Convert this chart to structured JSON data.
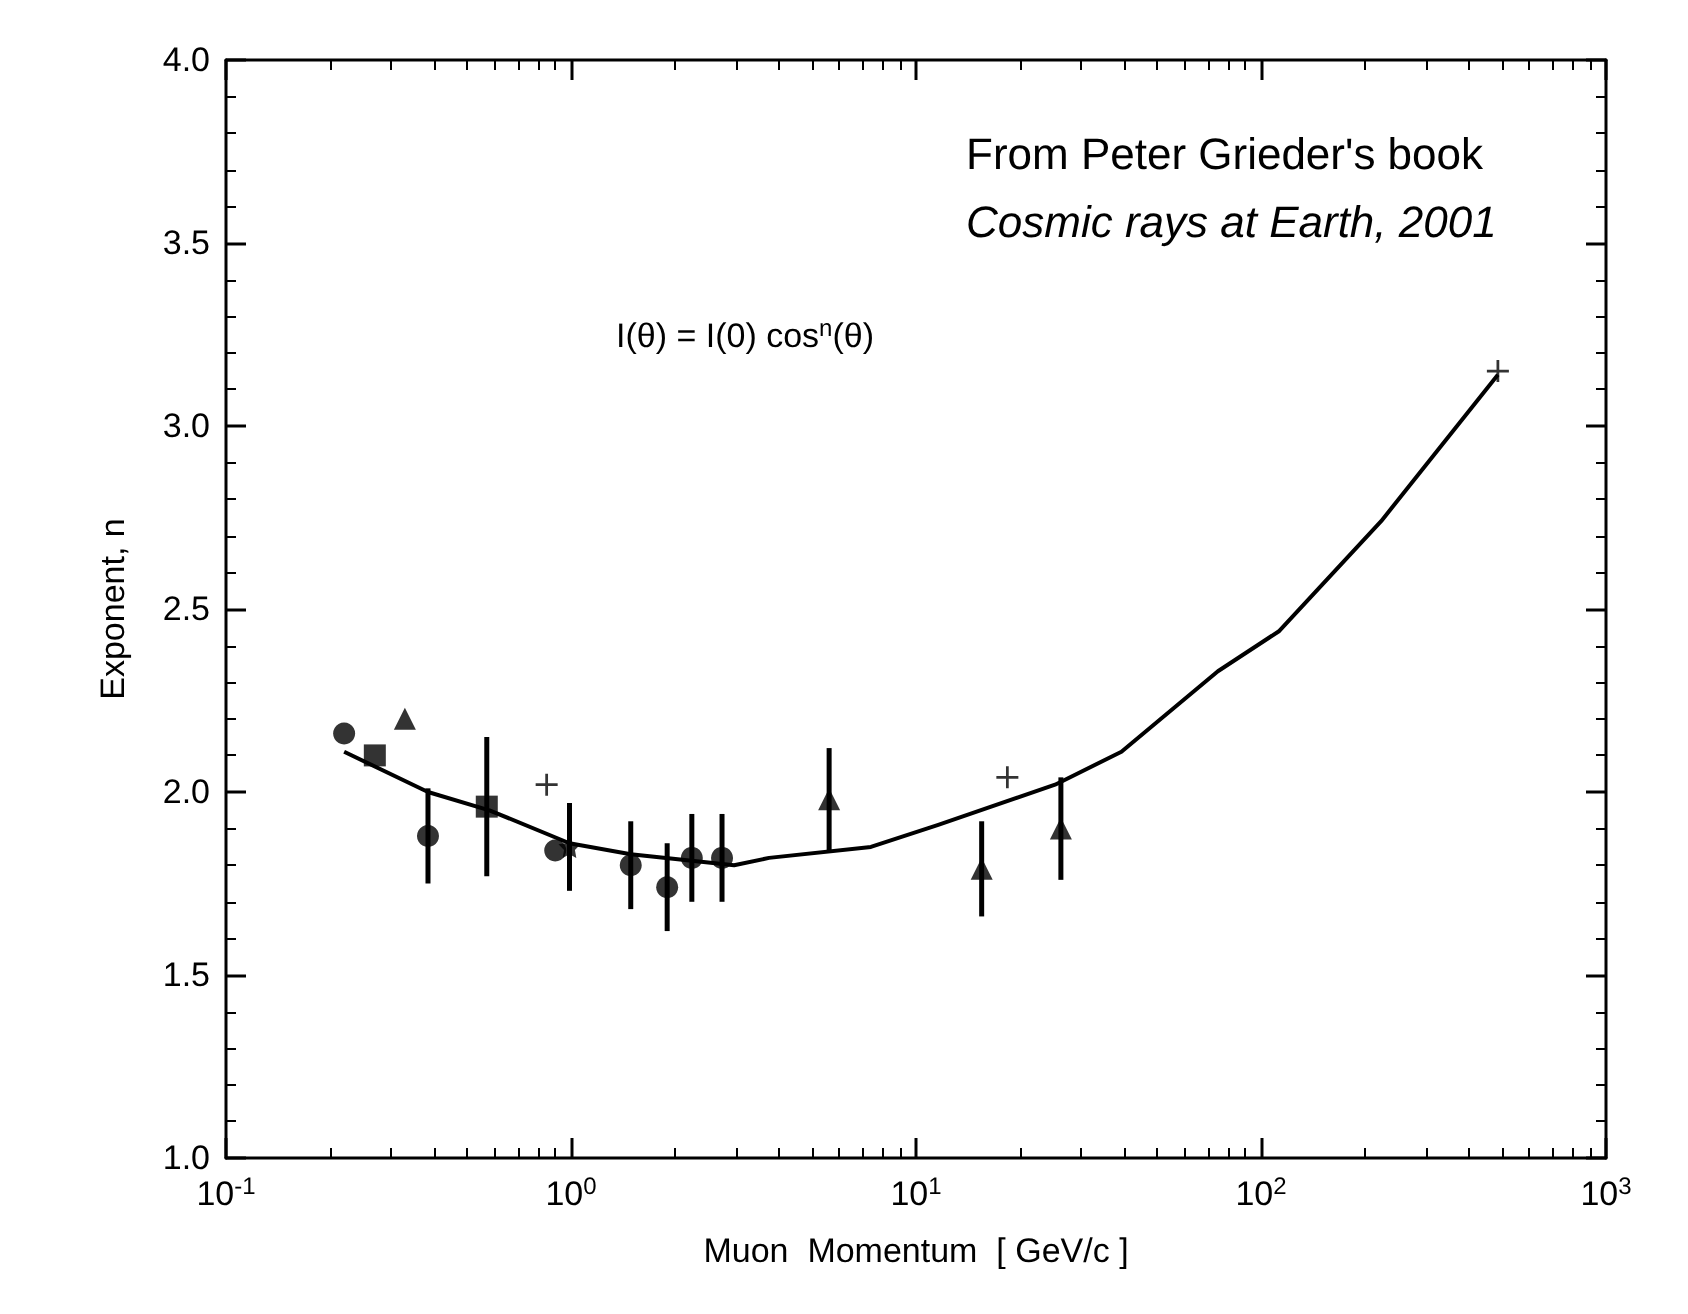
{
  "chart_data": {
    "type": "scatter",
    "xlabel": "Muon  Momentum  [ GeV/c ]",
    "ylabel": "Exponent, n",
    "log": "x",
    "xlim": [
      0.1,
      1000
    ],
    "xticks": [
      {
        "value": 0.1,
        "label": "10$^{-1}$"
      },
      {
        "value": 1,
        "label": "10$^{0}$"
      },
      {
        "value": 10,
        "label": "10$^{1}$"
      },
      {
        "value": 100,
        "label": "10$^{2}$"
      },
      {
        "value": 1000,
        "label": "10$^{3}$"
      }
    ],
    "ylim": [
      1.0,
      4.0
    ],
    "yticks": [
      {
        "value": 1.0,
        "label": "1.0"
      },
      {
        "value": 1.5,
        "label": "1.5"
      },
      {
        "value": 2.0,
        "label": "2.0"
      },
      {
        "value": 2.5,
        "label": "2.5"
      },
      {
        "value": 3.0,
        "label": "3.0"
      },
      {
        "value": 3.5,
        "label": "3.5"
      },
      {
        "value": 4.0,
        "label": "4.0"
      }
    ],
    "grid": false,
    "annotations": [
      "From Peter Grieder's book",
      "Cosmic rays at Earth, 2001",
      "I(θ) = I(0) cos$^{n}$(θ)"
    ],
    "series": [
      {
        "marker": "circle",
        "color": "#000000",
        "x": [
          0.22,
          0.385,
          0.9,
          1.49,
          1.9,
          2.24,
          2.74
        ],
        "values": [
          2.16,
          1.88,
          1.84,
          1.8,
          1.74,
          1.82,
          1.82
        ],
        "errors": [
          null,
          0.13,
          null,
          0.12,
          0.12,
          0.12,
          0.12
        ]
      },
      {
        "marker": "square",
        "color": "#000000",
        "x": [
          0.27,
          0.57
        ],
        "values": [
          2.1,
          1.96
        ],
        "errors": [
          null,
          0.19
        ]
      },
      {
        "marker": "triangle",
        "color": "#000000",
        "x": [
          0.33,
          5.6,
          15.5,
          26.3
        ],
        "values": [
          2.2,
          1.98,
          1.79,
          1.9
        ],
        "errors": [
          null,
          0.14,
          0.13,
          0.14
        ]
      },
      {
        "marker": "cross",
        "color": "#000000",
        "x": [
          0.85,
          18.4,
          486
        ],
        "values": [
          2.02,
          2.04,
          3.15
        ],
        "errors": [
          null,
          null,
          null
        ]
      },
      {
        "marker": "star",
        "color": "#000000",
        "x": [
          0.99
        ],
        "values": [
          1.85
        ],
        "errors": [
          0.12
        ]
      },
      {
        "type": "line",
        "marker": "none",
        "line_style": "solid",
        "color": "#000000",
        "x": [
          0.22,
          0.385,
          0.58,
          0.99,
          1.49,
          2.97,
          3.75,
          7.4,
          11.6,
          25.3,
          39.4,
          75,
          113,
          223,
          486
        ],
        "values": [
          2.11,
          2.0,
          1.95,
          1.86,
          1.83,
          1.8,
          1.82,
          1.85,
          1.91,
          2.02,
          2.11,
          2.33,
          2.44,
          2.74,
          3.14
        ]
      }
    ]
  }
}
